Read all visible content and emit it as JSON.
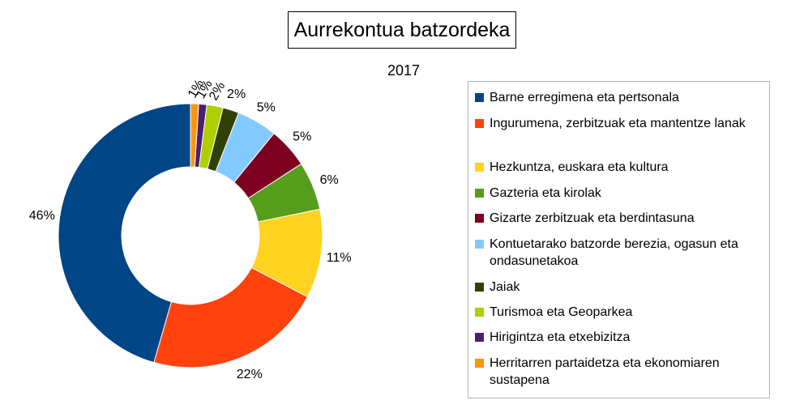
{
  "chart_data": {
    "type": "pie",
    "title": "Aurrekontua batzordeka",
    "subtitle": "2017",
    "categories": [
      "Barne erregimena eta pertsonala",
      "Ingurumena, zerbitzuak eta mantentze lanak",
      "Hezkuntza, euskara eta kultura",
      "Gazteria eta kirolak",
      "Gizarte zerbitzuak eta berdintasuna",
      "Kontuetarako batzorde berezia, ogasun eta ondasunetakoa",
      "Jaiak",
      "Turismoa eta Geoparkea",
      "Hirigintza eta etxebizitza",
      "Herritarren partaidetza eta ekonomiaren sustapena"
    ],
    "values": [
      46,
      22,
      11,
      6,
      5,
      5,
      2,
      2,
      1,
      1
    ],
    "data_labels": [
      "46%",
      "22%",
      "11%",
      "6%",
      "5%",
      "5%",
      "2%",
      "2%",
      "1%",
      "1%"
    ],
    "colors": [
      "#004586",
      "#ff420e",
      "#ffd320",
      "#579d1c",
      "#7e0021",
      "#83caff",
      "#314004",
      "#aecf00",
      "#4b1f6f",
      "#ff950e"
    ],
    "legend_position": "right",
    "donut": true
  }
}
